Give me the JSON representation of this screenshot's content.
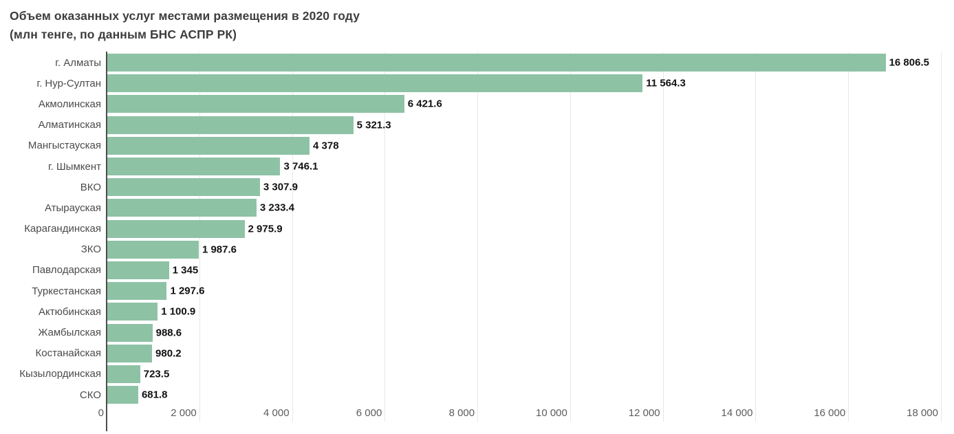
{
  "title": {
    "line1": "Объем оказанных услуг местами размещения в 2020 году",
    "line2": "(млн тенге, по данным БНС АСПР РК)"
  },
  "colors": {
    "bar": "#8ec2a5",
    "title_text": "#3d3d3d",
    "category_text": "#4b4b4b",
    "value_text": "#111111",
    "tick_text": "#5c5c5c",
    "axis_line": "#4c4c4c",
    "gridline": "#e7e7e7",
    "background": "#ffffff"
  },
  "chart_data": {
    "type": "bar",
    "orientation": "horizontal",
    "title": "Объем оказанных услуг местами размещения в 2020 году (млн тенге, по данным БНС АСПР РК)",
    "categories": [
      "г. Алматы",
      "г. Нур-Султан",
      "Акмолинская",
      "Алматинская",
      "Мангыстауская",
      "г. Шымкент",
      "ВКО",
      "Атырауская",
      "Карагандинская",
      "ЗКО",
      "Павлодарская",
      "Туркестанская",
      "Актюбинская",
      "Жамбылская",
      "Костанайская",
      "Кызылординская",
      "СКО"
    ],
    "values": [
      16806.5,
      11564.3,
      6421.6,
      5321.3,
      4378,
      3746.1,
      3307.9,
      3233.4,
      2975.9,
      1987.6,
      1345,
      1297.6,
      1100.9,
      988.6,
      980.2,
      723.5,
      681.8
    ],
    "value_labels": [
      "16 806.5",
      "11 564.3",
      "6 421.6",
      "5 321.3",
      "4 378",
      "3 746.1",
      "3 307.9",
      "3 233.4",
      "2 975.9",
      "1 987.6",
      "1 345",
      "1 297.6",
      "1 100.9",
      "988.6",
      "980.2",
      "723.5",
      "681.8"
    ],
    "xlabel": "",
    "ylabel": "",
    "xlim": [
      0,
      18000
    ],
    "x_ticks": [
      0,
      2000,
      4000,
      6000,
      8000,
      10000,
      12000,
      14000,
      16000,
      18000
    ],
    "x_tick_labels": [
      "0",
      "2 000",
      "4 000",
      "6 000",
      "8 000",
      "10 000",
      "12 000",
      "14 000",
      "16 000",
      "18 000"
    ],
    "grid": true,
    "legend": false
  }
}
